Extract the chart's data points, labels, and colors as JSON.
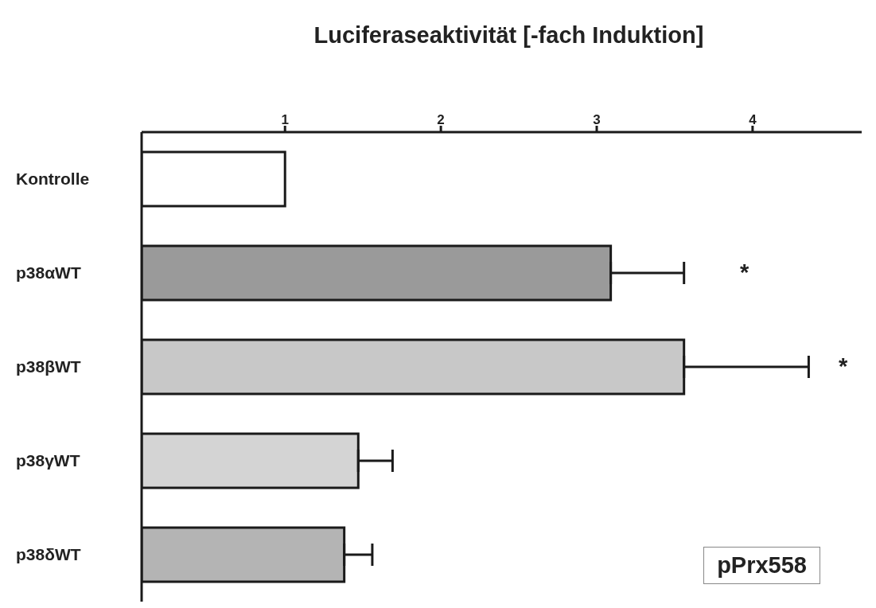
{
  "chart_data": {
    "type": "bar",
    "orientation": "horizontal",
    "xlabel": "Luciferaseaktivität [-fach Induktion]",
    "categories": [
      "Kontrolle",
      "p38αWT",
      "p38βWT",
      "p38γWT",
      "p38δWT"
    ],
    "values": [
      1.0,
      3.09,
      3.56,
      1.47,
      1.38
    ],
    "errors": [
      null,
      [
        3.09,
        3.56
      ],
      [
        3.56,
        4.36
      ],
      [
        1.47,
        1.69
      ],
      [
        1.38,
        1.56
      ]
    ],
    "colors": [
      "#ffffff",
      "#9a9a9a",
      "#c8c8c8",
      "#d4d4d4",
      "#b4b4b4"
    ],
    "xlim": [
      0.08,
      4.7
    ],
    "xticks": [
      1,
      2,
      3,
      4
    ],
    "annotations": [
      "*",
      "*",
      "pPrx558"
    ],
    "grid": false,
    "legend": false
  }
}
